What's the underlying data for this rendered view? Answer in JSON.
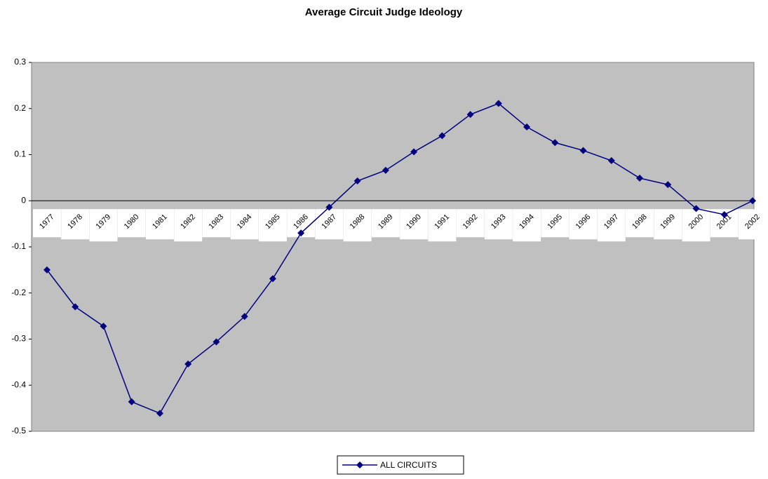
{
  "chart_data": {
    "type": "line",
    "title": "Average Circuit Judge Ideology",
    "categories": [
      "1977",
      "1978",
      "1979",
      "1980",
      "1981",
      "1982",
      "1983",
      "1984",
      "1985",
      "1986",
      "1987",
      "1988",
      "1989",
      "1990",
      "1991",
      "1992",
      "1993",
      "1994",
      "1995",
      "1996",
      "1997",
      "1998",
      "1999",
      "2000",
      "2001",
      "2002"
    ],
    "series": [
      {
        "name": "ALL CIRCUITS",
        "color": "#000080",
        "values": [
          -0.15,
          -0.23,
          -0.272,
          -0.436,
          -0.461,
          -0.354,
          -0.306,
          -0.251,
          -0.169,
          -0.07,
          -0.014,
          0.043,
          0.066,
          0.106,
          0.141,
          0.187,
          0.211,
          0.16,
          0.126,
          0.109,
          0.087,
          0.049,
          0.035,
          -0.017,
          -0.03,
          0
        ]
      }
    ],
    "ylim": [
      -0.5,
      0.3
    ],
    "yticks": [
      -0.5,
      -0.4,
      -0.3,
      -0.2,
      -0.1,
      0,
      0.1,
      0.2,
      0.3
    ],
    "grid": false
  }
}
